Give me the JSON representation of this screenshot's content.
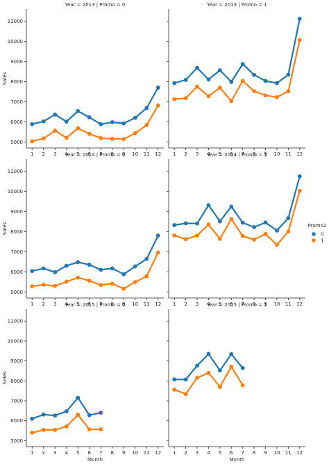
{
  "chart_data": {
    "type": "line",
    "xlabel": "Month",
    "ylabel": "Sales",
    "x": [
      1,
      2,
      3,
      4,
      5,
      6,
      7,
      8,
      9,
      10,
      11,
      12
    ],
    "ylim": [
      4700,
      11600
    ],
    "yticks": [
      5000,
      6000,
      7000,
      8000,
      9000,
      10000,
      11000
    ],
    "legend": {
      "title": "Promo2",
      "entries": [
        "0",
        "1"
      ],
      "placement": "right"
    },
    "colors": {
      "0": "#1f77b4",
      "1": "#ff7f0e"
    },
    "panels": [
      {
        "title": "Year = 2013 | Promo = 0",
        "series": [
          {
            "name": "0",
            "values": [
              5880,
              6020,
              6360,
              6010,
              6530,
              6220,
              5880,
              5980,
              5920,
              6200,
              6680,
              7700
            ]
          },
          {
            "name": "1",
            "values": [
              5030,
              5170,
              5560,
              5200,
              5680,
              5400,
              5190,
              5150,
              5140,
              5430,
              5840,
              6810
            ]
          }
        ]
      },
      {
        "title": "Year = 2013 | Promo = 1",
        "series": [
          {
            "name": "0",
            "values": [
              7920,
              8080,
              8680,
              8100,
              8560,
              7980,
              8870,
              8330,
              8030,
              7920,
              8340,
              11120
            ]
          },
          {
            "name": "1",
            "values": [
              7120,
              7170,
              7750,
              7270,
              7690,
              7030,
              8030,
              7520,
              7310,
              7220,
              7520,
              10060
            ]
          }
        ]
      },
      {
        "title": "Year = 2014 | Promo = 0",
        "series": [
          {
            "name": "0",
            "values": [
              6040,
              6170,
              5980,
              6300,
              6480,
              6350,
              6100,
              6170,
              5880,
              6270,
              6640,
              7800
            ]
          },
          {
            "name": "1",
            "values": [
              5280,
              5360,
              5300,
              5510,
              5710,
              5560,
              5340,
              5410,
              5160,
              5490,
              5780,
              6960
            ]
          }
        ]
      },
      {
        "title": "Year = 2014 | Promo = 1",
        "series": [
          {
            "name": "0",
            "values": [
              8320,
              8410,
              8400,
              9310,
              8510,
              9240,
              8440,
              8220,
              8450,
              8050,
              8670,
              10740
            ]
          },
          {
            "name": "1",
            "values": [
              7810,
              7620,
              7800,
              8350,
              7640,
              8620,
              7780,
              7600,
              7880,
              7340,
              8000,
              10020
            ]
          }
        ]
      },
      {
        "title": "Year = 2015 | Promo = 0",
        "series": [
          {
            "name": "0",
            "values": [
              6100,
              6310,
              6260,
              6470,
              7150,
              6280,
              6400
            ]
          },
          {
            "name": "1",
            "values": [
              5400,
              5540,
              5540,
              5710,
              6300,
              5560,
              5570
            ]
          }
        ]
      },
      {
        "title": "Year = 2015 | Promo = 1",
        "series": [
          {
            "name": "0",
            "values": [
              8070,
              8070,
              8760,
              9350,
              8520,
              9340,
              8640
            ]
          },
          {
            "name": "1",
            "values": [
              7560,
              7340,
              8150,
              8400,
              7700,
              8710,
              7780
            ]
          }
        ]
      }
    ]
  }
}
